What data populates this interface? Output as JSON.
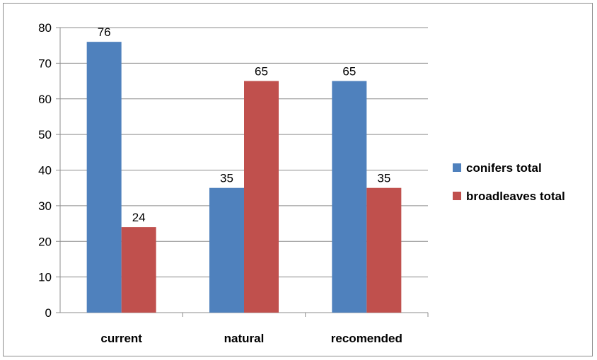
{
  "chart_data": {
    "type": "bar",
    "categories": [
      "current",
      "natural",
      "recomended"
    ],
    "series": [
      {
        "name": "conifers total",
        "values": [
          76,
          35,
          65
        ],
        "color": "#4f81bd"
      },
      {
        "name": "broadleaves total",
        "values": [
          24,
          65,
          35
        ],
        "color": "#c0504d"
      }
    ],
    "y_ticks": [
      "0",
      "10",
      "20",
      "30",
      "40",
      "50",
      "60",
      "70",
      "80"
    ],
    "ylim": [
      0,
      80
    ],
    "grid": true,
    "legend_position": "right",
    "data_labels": true
  }
}
